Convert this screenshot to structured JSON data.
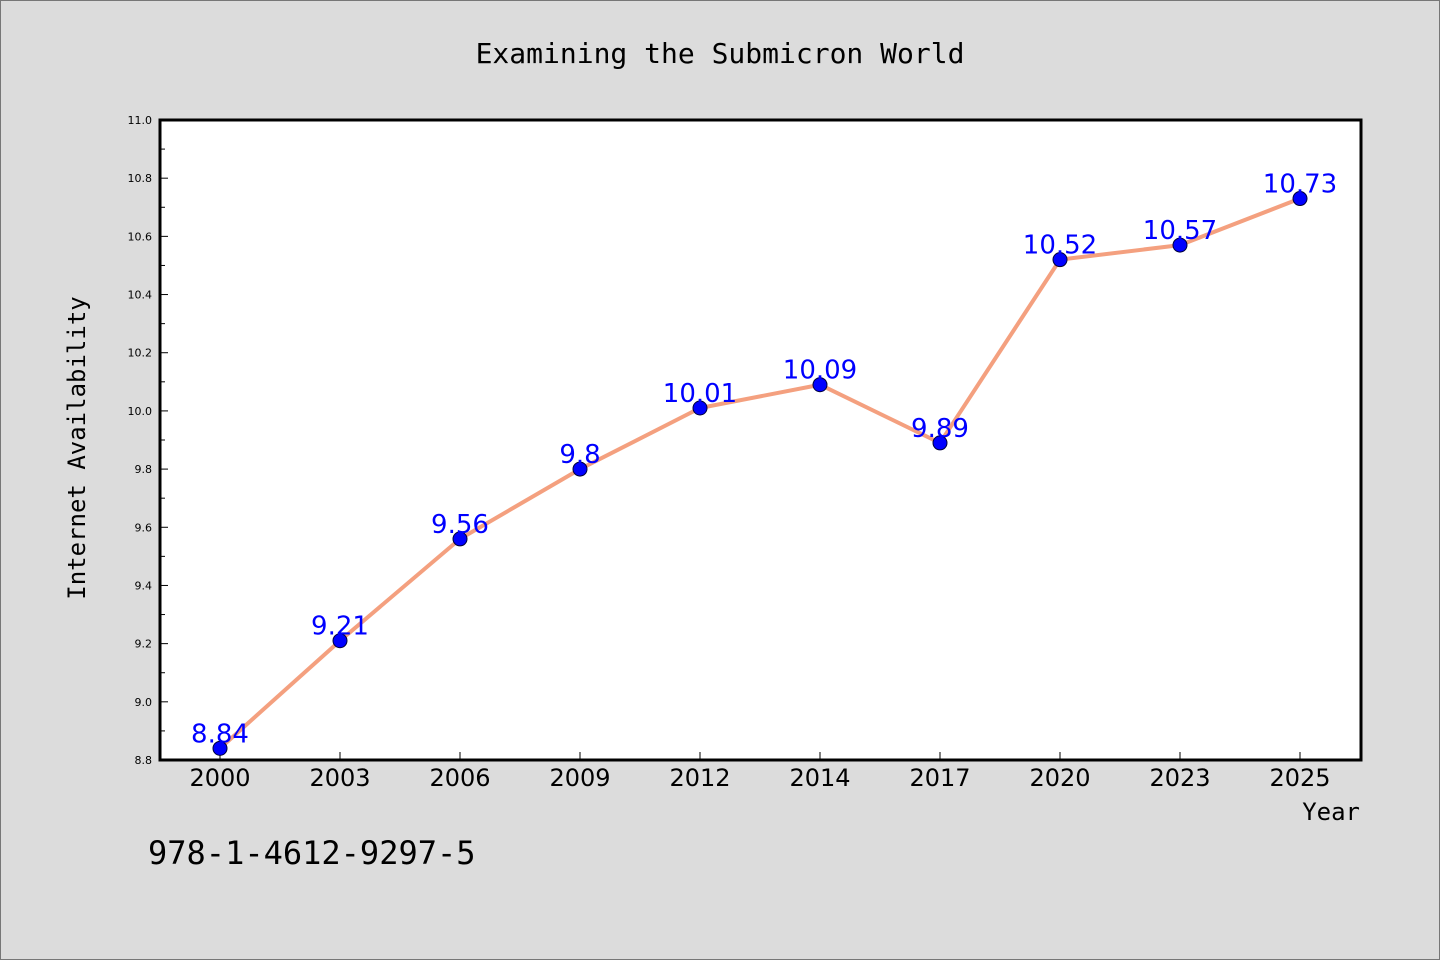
{
  "chart_data": {
    "type": "line",
    "title": "Examining the Submicron World",
    "xlabel": "Year",
    "ylabel": "Internet Availability",
    "categories": [
      "2000",
      "2003",
      "2006",
      "2009",
      "2012",
      "2014",
      "2017",
      "2020",
      "2023",
      "2025"
    ],
    "values": [
      8.84,
      9.21,
      9.56,
      9.8,
      10.01,
      10.09,
      9.89,
      10.52,
      10.57,
      10.73
    ],
    "data_labels": [
      "8.84",
      "9.21",
      "9.56",
      "9.8",
      "10.01",
      "10.09",
      "9.89",
      "10.52",
      "10.57",
      "10.73"
    ],
    "ylim": [
      8.8,
      11.0
    ],
    "yticks": [
      "8.8",
      "9.0",
      "9.2",
      "9.4",
      "9.6",
      "9.8",
      "10.0",
      "10.2",
      "10.4",
      "10.6",
      "10.8",
      "11.0"
    ],
    "grid": false,
    "line_color": "#f4a07f",
    "marker_color": "#0000ff",
    "label_color": "#0000ff"
  },
  "footer": {
    "code": "978-1-4612-9297-5"
  }
}
